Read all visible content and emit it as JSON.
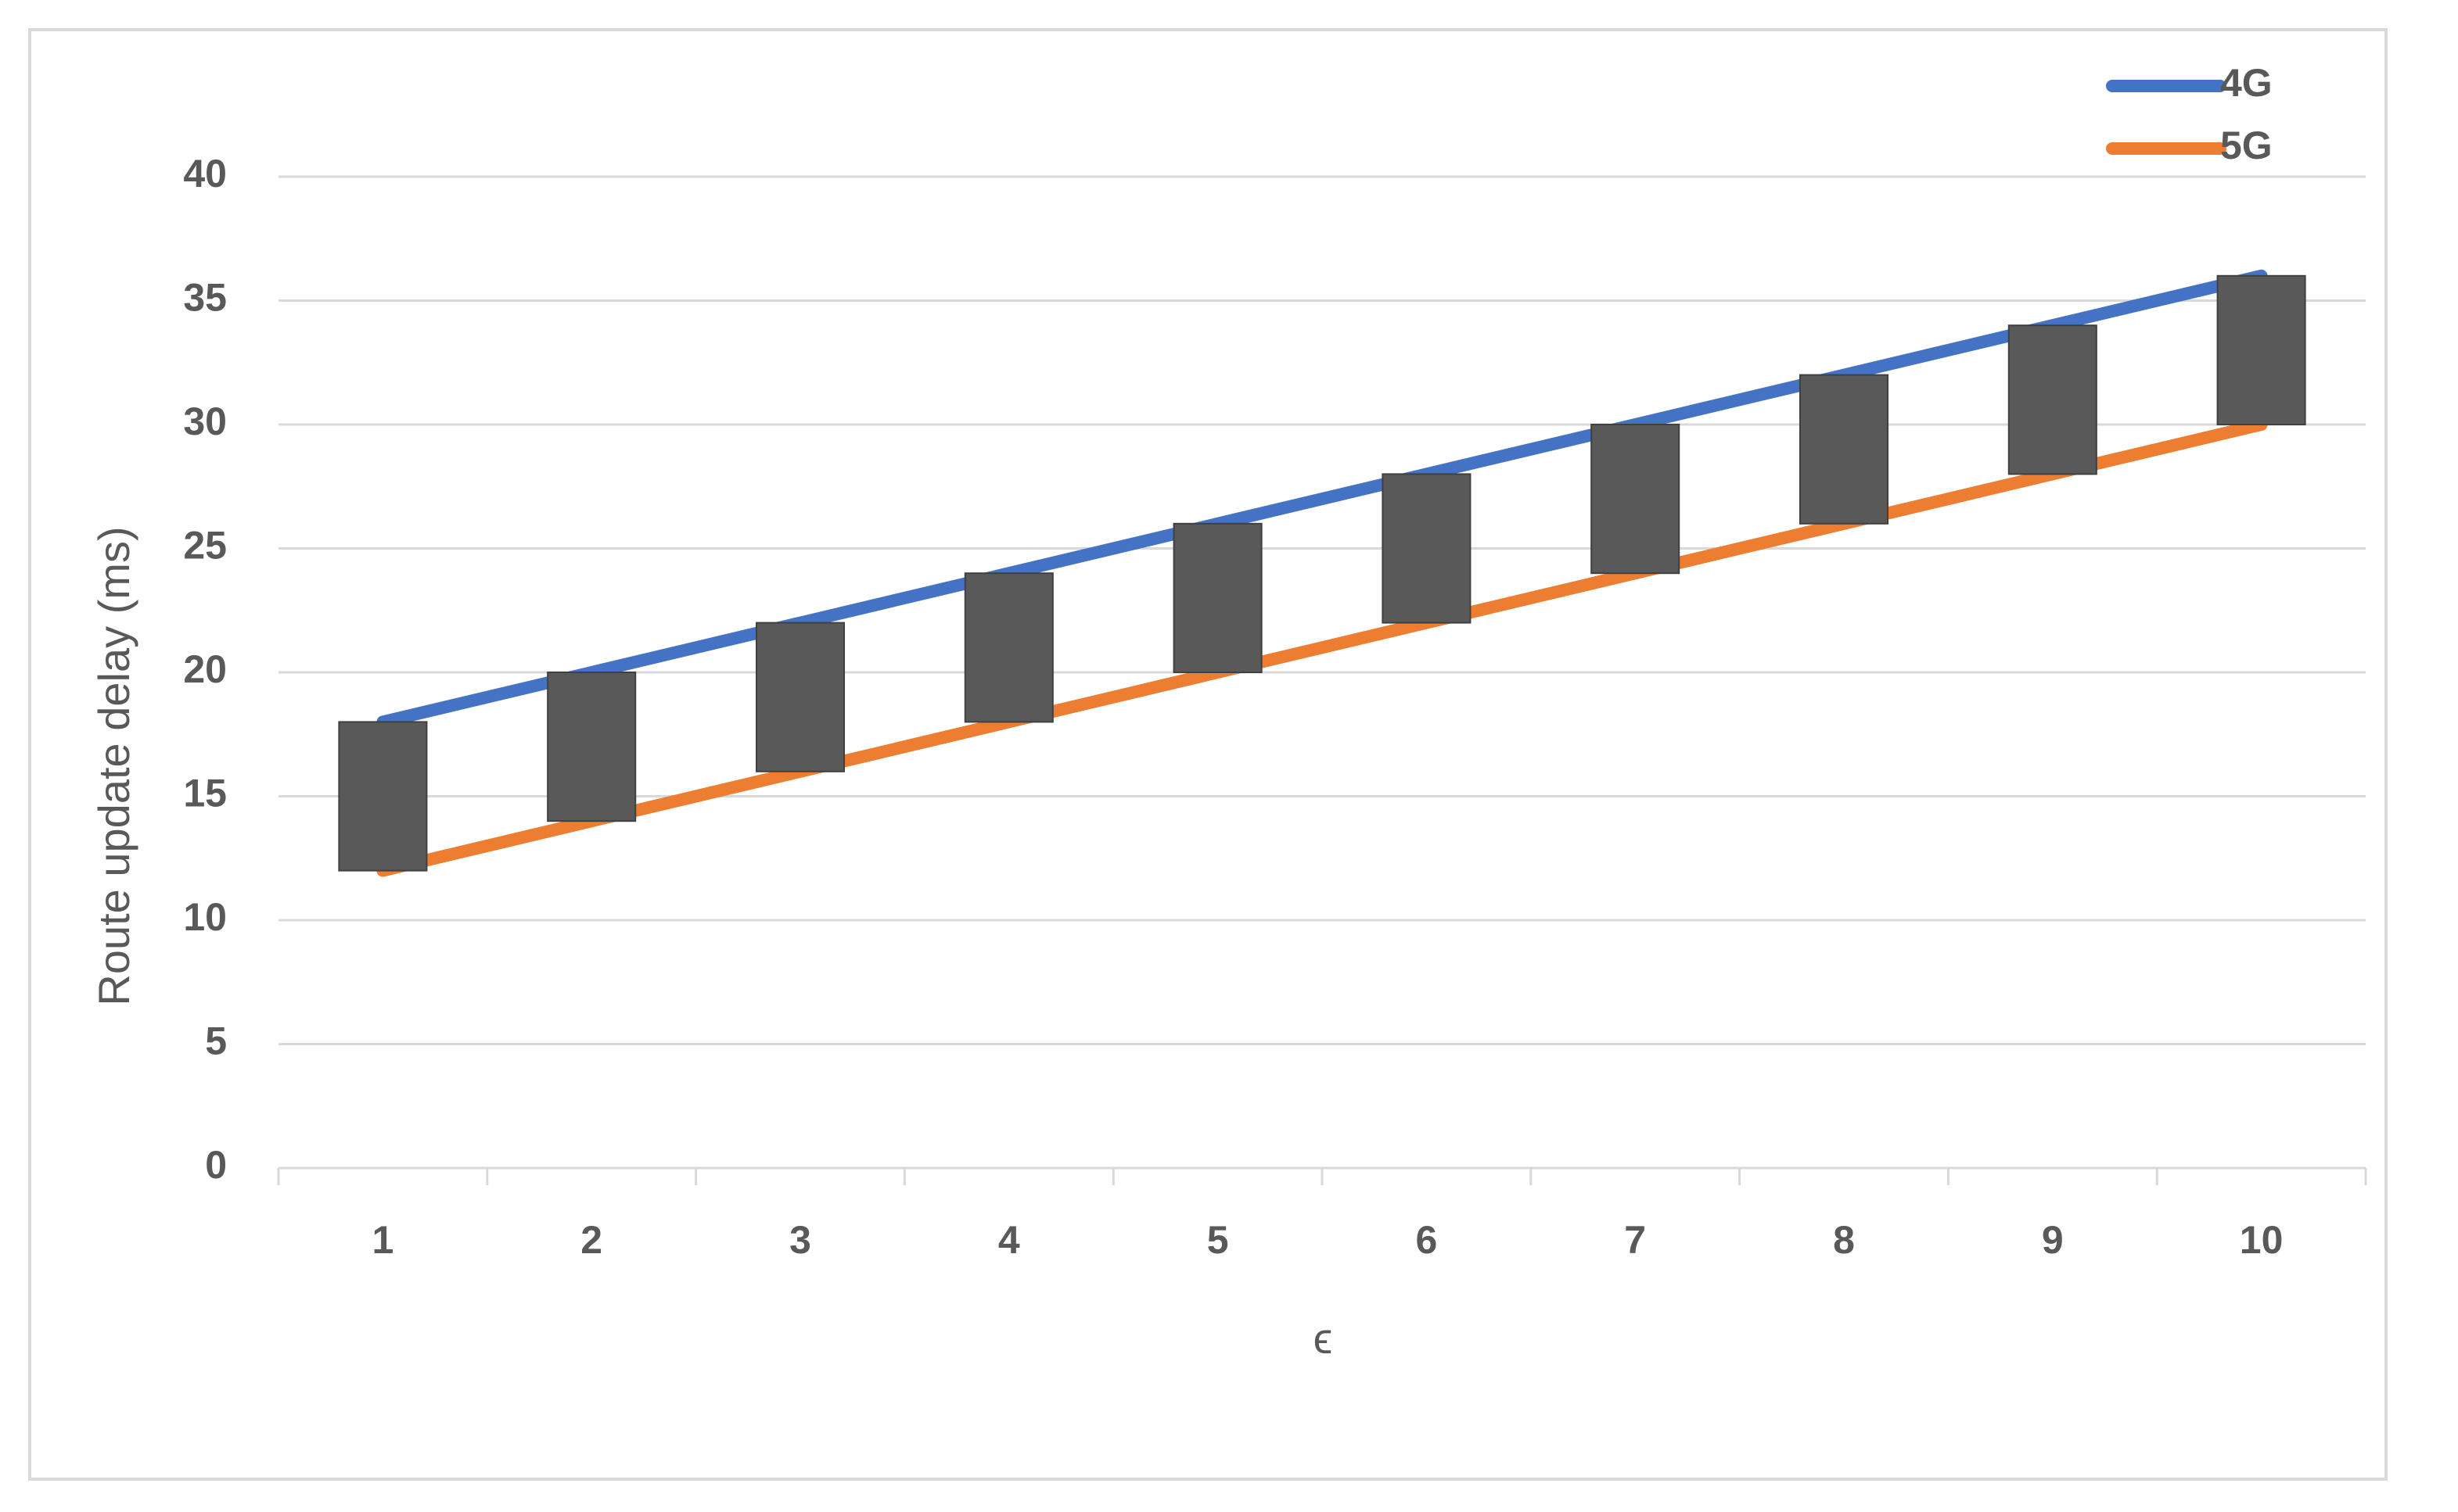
{
  "chart_data": {
    "type": "line",
    "title": "",
    "xlabel": "ϵ",
    "ylabel": "Route update delay (ms)",
    "categories": [
      "1",
      "2",
      "3",
      "4",
      "5",
      "6",
      "7",
      "8",
      "9",
      "10"
    ],
    "ylim": [
      0,
      40
    ],
    "yticks": [
      "0",
      "5",
      "10",
      "15",
      "20",
      "25",
      "30",
      "35",
      "40"
    ],
    "grid": true,
    "legend": "top-right",
    "series": [
      {
        "name": "4G",
        "color": "#4472c4",
        "values": [
          18,
          20,
          22,
          24,
          26,
          28,
          30,
          32,
          34,
          36
        ]
      },
      {
        "name": "5G",
        "color": "#ed7d31",
        "values": [
          12,
          14,
          16,
          18,
          20,
          22,
          24,
          26,
          28,
          30
        ]
      }
    ],
    "up_down_bars": {
      "color": "#595959"
    }
  }
}
